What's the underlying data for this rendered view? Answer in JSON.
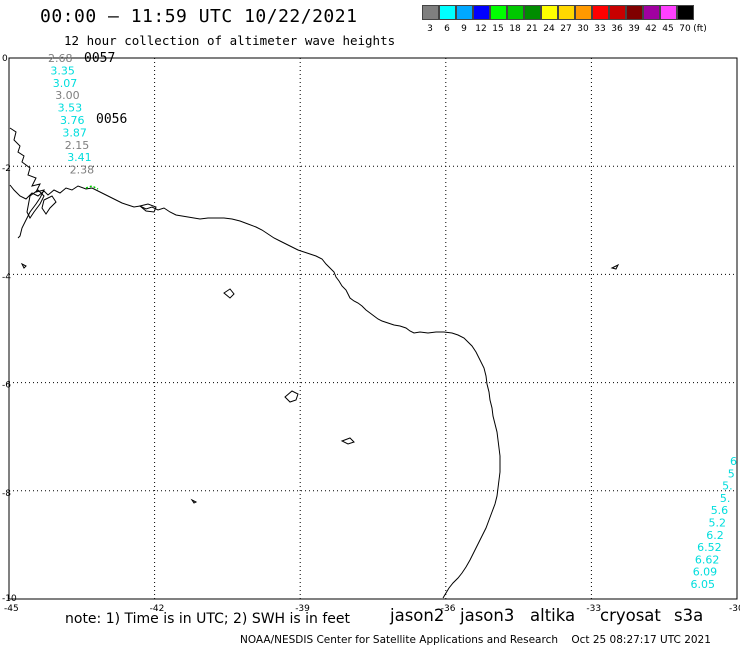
{
  "header": {
    "title": "00:00 – 11:59 UTC 10/22/2021",
    "subtitle": "12 hour collection of altimeter wave heights"
  },
  "legend": {
    "unit": "(ft)",
    "bins": [
      {
        "label": "3",
        "color": "#7f7f7f"
      },
      {
        "label": "6",
        "color": "#00ffff"
      },
      {
        "label": "9",
        "color": "#00a8ff"
      },
      {
        "label": "12",
        "color": "#0000ff"
      },
      {
        "label": "15",
        "color": "#00ff00"
      },
      {
        "label": "18",
        "color": "#00c800"
      },
      {
        "label": "21",
        "color": "#008c00"
      },
      {
        "label": "24",
        "color": "#ffff00"
      },
      {
        "label": "27",
        "color": "#ffd800"
      },
      {
        "label": "30",
        "color": "#ff9900"
      },
      {
        "label": "33",
        "color": "#ff0000"
      },
      {
        "label": "36",
        "color": "#c80000"
      },
      {
        "label": "39",
        "color": "#800000"
      },
      {
        "label": "42",
        "color": "#a000a0"
      },
      {
        "label": "45",
        "color": "#ff40ff"
      },
      {
        "label": "70",
        "color": "#000000"
      }
    ]
  },
  "map": {
    "lon_ticks": [
      "-45",
      "-42",
      "-39",
      "-36",
      "-33",
      "-30"
    ],
    "lat_ticks": [
      "0",
      "-2",
      "-4",
      "-6",
      "-8",
      "-10"
    ],
    "extent": {
      "lon": [
        -45,
        -30
      ],
      "lat": [
        -10,
        0
      ]
    },
    "grid": "dotted",
    "track_labels": [
      "0057",
      "0056"
    ],
    "swh_left": [
      {
        "v": "2.68",
        "c": "#7f7f7f"
      },
      {
        "v": "3.35",
        "c": "#00dddd"
      },
      {
        "v": "3.07",
        "c": "#00dddd"
      },
      {
        "v": "3.00",
        "c": "#7f7f7f"
      },
      {
        "v": "3.53",
        "c": "#00dddd"
      },
      {
        "v": "3.76",
        "c": "#00dddd"
      },
      {
        "v": "3.87",
        "c": "#00dddd"
      },
      {
        "v": "2.15",
        "c": "#7f7f7f"
      },
      {
        "v": "3.41",
        "c": "#00dddd"
      },
      {
        "v": "2.38",
        "c": "#7f7f7f"
      }
    ],
    "swh_right": [
      {
        "v": "6",
        "c": "#00dddd"
      },
      {
        "v": "5",
        "c": "#00dddd"
      },
      {
        "v": "5.",
        "c": "#00dddd"
      },
      {
        "v": "5.",
        "c": "#00dddd"
      },
      {
        "v": "5.6",
        "c": "#00dddd"
      },
      {
        "v": "5.2",
        "c": "#00dddd"
      },
      {
        "v": "6.2",
        "c": "#00dddd"
      },
      {
        "v": "6.52",
        "c": "#00dddd"
      },
      {
        "v": "6.62",
        "c": "#00dddd"
      },
      {
        "v": "6.09",
        "c": "#00dddd"
      },
      {
        "v": "6.05",
        "c": "#00dddd"
      }
    ]
  },
  "footer": {
    "note": "note: 1) Time is in UTC; 2) SWH is in feet",
    "satellites": [
      {
        "name": "jason2",
        "color": "#0000ff"
      },
      {
        "name": "jason3",
        "color": "#008c00"
      },
      {
        "name": "altika",
        "color": "#ff9900"
      },
      {
        "name": "cryosat",
        "color": "#ff0000"
      },
      {
        "name": "s3a",
        "color": "#800000"
      }
    ],
    "credit": "NOAA/NESDIS Center for Satellite Applications and Research",
    "timestamp": "Oct 25 08:27:17 UTC 2021"
  }
}
